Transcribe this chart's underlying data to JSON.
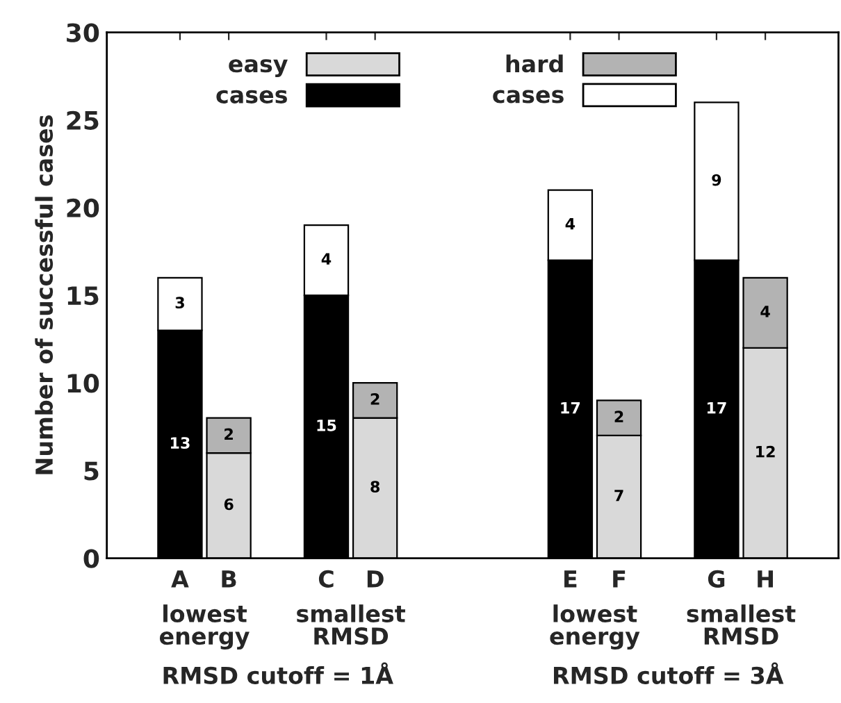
{
  "chart_data": {
    "type": "bar",
    "stacked": true,
    "ylabel": "Number of successful cases",
    "categories": [
      null,
      "A",
      "B",
      null,
      "C",
      "D",
      null,
      null,
      null,
      "E",
      "F",
      null,
      "G",
      "H",
      null
    ],
    "series": [
      {
        "name": "easy",
        "color": "#d9d9d9",
        "values": [
          null,
          null,
          6,
          null,
          null,
          8,
          null,
          null,
          null,
          null,
          7,
          null,
          null,
          12,
          null
        ]
      },
      {
        "name": "cases",
        "color": "#000000",
        "values": [
          null,
          13,
          null,
          null,
          15,
          null,
          null,
          null,
          null,
          17,
          null,
          null,
          17,
          null,
          null
        ]
      },
      {
        "name": "hard",
        "color": "#b3b3b3",
        "values": [
          null,
          null,
          2,
          null,
          null,
          2,
          null,
          null,
          null,
          null,
          2,
          null,
          null,
          4,
          null
        ]
      },
      {
        "name": "cases",
        "color": "#ffffff",
        "values": [
          null,
          3,
          null,
          null,
          4,
          null,
          null,
          null,
          null,
          4,
          null,
          null,
          9,
          null,
          null
        ]
      }
    ],
    "ylim": [
      0,
      30
    ],
    "yticks": [
      0,
      5,
      10,
      15,
      20,
      25,
      30
    ],
    "data_labels": true,
    "legend": "top left",
    "grid": false,
    "annotations": [
      "lowest\nenergy",
      "smallest\nRMSD",
      "lowest\nenergy",
      "smallest\nRMSD",
      "RMSD cutoff = 1Å",
      "RMSD cutoff = 3Å"
    ]
  }
}
